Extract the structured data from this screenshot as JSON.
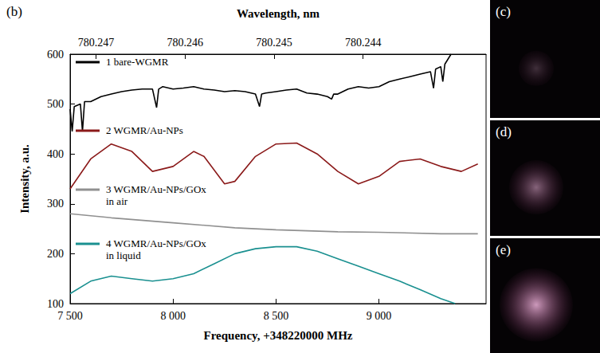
{
  "chart_data": {
    "type": "line",
    "panel_label": "(b)",
    "inset_labels": [
      "(c)",
      "(d)",
      "(e)"
    ],
    "x_label": "Frequency, +348220000 MHz",
    "x2_label": "Wavelength, nm",
    "y_label": "Intensity, a.u.",
    "xlim": [
      7500,
      9520
    ],
    "xticks": [
      {
        "value": 7500,
        "label": "7 500"
      },
      {
        "value": 8000,
        "label": "8 000"
      },
      {
        "value": 8500,
        "label": "8 500"
      },
      {
        "value": 9000,
        "label": "9 000"
      }
    ],
    "x2lim": [
      780.24729,
      780.24262
    ],
    "x2ticks": [
      780.247,
      780.246,
      780.245,
      780.244
    ],
    "ylim": [
      100,
      600
    ],
    "yticks": [
      100,
      200,
      300,
      400,
      500,
      600
    ],
    "grid": false,
    "legend": "left",
    "series": [
      {
        "name": "1 bare-WGMR",
        "color": "#000000",
        "x": [
          7500,
          7510,
          7520,
          7550,
          7560,
          7570,
          7600,
          7650,
          7700,
          7750,
          7800,
          7850,
          7900,
          7920,
          7930,
          7950,
          8000,
          8050,
          8100,
          8150,
          8200,
          8250,
          8300,
          8350,
          8400,
          8420,
          8430,
          8450,
          8500,
          8550,
          8600,
          8650,
          8700,
          8750,
          8770,
          8780,
          8800,
          8850,
          8900,
          8950,
          9000,
          9050,
          9100,
          9150,
          9200,
          9250,
          9265,
          9275,
          9300,
          9310,
          9320,
          9350
        ],
        "values": [
          490,
          445,
          495,
          500,
          445,
          505,
          505,
          515,
          520,
          525,
          528,
          530,
          530,
          493,
          530,
          535,
          530,
          532,
          535,
          530,
          528,
          525,
          527,
          525,
          520,
          495,
          520,
          522,
          525,
          528,
          530,
          522,
          520,
          515,
          510,
          520,
          520,
          530,
          535,
          532,
          535,
          545,
          550,
          555,
          560,
          565,
          532,
          570,
          575,
          545,
          580,
          600
        ]
      },
      {
        "name": "2 WGMR/Au-NPs",
        "color": "#8b1a1a",
        "x": [
          7500,
          7600,
          7700,
          7800,
          7900,
          8000,
          8100,
          8150,
          8250,
          8300,
          8400,
          8500,
          8600,
          8700,
          8800,
          8900,
          9000,
          9100,
          9200,
          9300,
          9400,
          9480
        ],
        "values": [
          330,
          390,
          420,
          405,
          365,
          375,
          405,
          395,
          340,
          345,
          395,
          420,
          422,
          400,
          365,
          340,
          355,
          385,
          390,
          375,
          365,
          380
        ]
      },
      {
        "name": "3 WGMR/Au-NPs/GOx in air",
        "color": "#909090",
        "x": [
          7500,
          7700,
          8000,
          8300,
          8500,
          8800,
          9000,
          9300,
          9480
        ],
        "values": [
          280,
          272,
          262,
          252,
          248,
          244,
          243,
          240,
          240
        ]
      },
      {
        "name": "4 WGMR/Au-NPs/GOx in liquid",
        "color": "#1a9090",
        "x": [
          7500,
          7600,
          7700,
          7800,
          7900,
          8000,
          8100,
          8200,
          8300,
          8400,
          8500,
          8600,
          8700,
          8800,
          8900,
          9000,
          9100,
          9200,
          9300,
          9370
        ],
        "values": [
          120,
          145,
          155,
          150,
          145,
          150,
          160,
          180,
          200,
          210,
          214,
          214,
          205,
          190,
          175,
          160,
          145,
          128,
          110,
          100
        ]
      }
    ]
  }
}
